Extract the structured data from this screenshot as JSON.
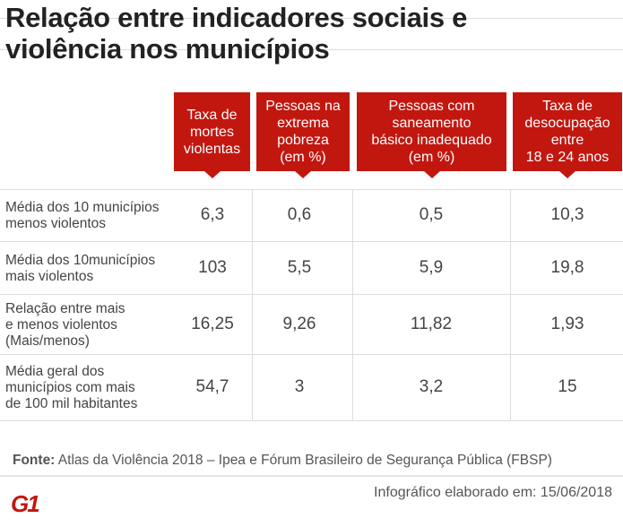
{
  "title": "Relação entre indicadores sociais e\nviolência nos municípios",
  "chart_data": {
    "type": "table",
    "columns": [
      "Taxa de\nmortes\nviolentas",
      "Pessoas na\nextrema\npobreza\n(em %)",
      "Pessoas com\nsaneamento\nbásico inadequado\n(em %)",
      "Taxa de\ndesocupação\nentre\n18 e 24 anos"
    ],
    "rows": [
      {
        "label": "Média dos 10 municípios\nmenos violentos",
        "values": [
          "6,3",
          "0,6",
          "0,5",
          "10,3"
        ]
      },
      {
        "label": "Média dos 10municípios\nmais violentos",
        "values": [
          "103",
          "5,5",
          "5,9",
          "19,8"
        ]
      },
      {
        "label": "Relação entre mais\ne menos violentos\n(Mais/menos)",
        "values": [
          "16,25",
          "9,26",
          "11,82",
          "1,93"
        ]
      },
      {
        "label": "Média geral dos\nmunicípios com mais\nde 100 mil habitantes",
        "values": [
          "54,7",
          "3",
          "3,2",
          "15"
        ]
      }
    ]
  },
  "footer": {
    "source_label": "Fonte:",
    "source_text": " Atlas da Violência 2018 – Ipea e Fórum Brasileiro de Segurança Pública (FBSP)",
    "date": "Infográfico elaborado em: 15/06/2018",
    "logo": "G1"
  },
  "colors": {
    "accent": "#c2170f"
  }
}
